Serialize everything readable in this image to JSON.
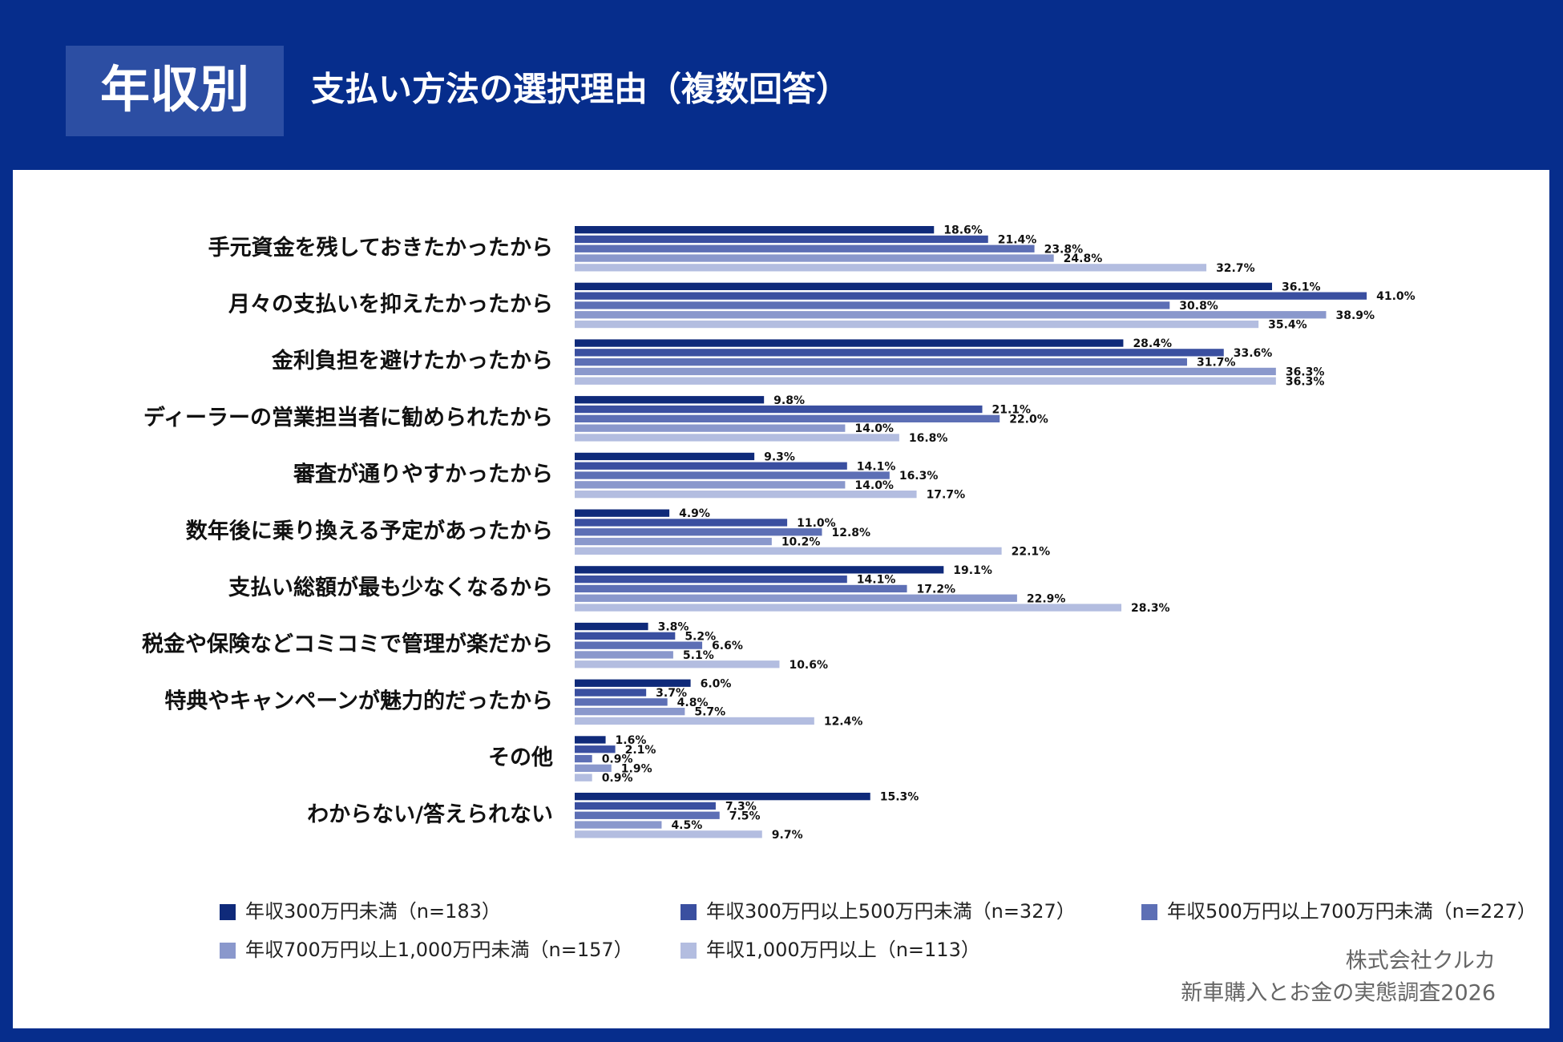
{
  "header": {
    "tag": "年収別",
    "title": "支払い方法の選択理由（複数回答）"
  },
  "chart_data": {
    "type": "bar",
    "categories": [
      "手元資金を残しておきたかったから",
      "月々の支払いを抑えたかったから",
      "金利負担を避けたかったから",
      "ディーラーの営業担当者に勧められたから",
      "審査が通りやすかったから",
      "数年後に乗り換える予定があったから",
      "支払い総額が最も少なくなるから",
      "税金や保険などコミコミで管理が楽だから",
      "特典やキャンペーンが魅力的だったから",
      "その他",
      "わからない/答えられない"
    ],
    "series": [
      {
        "name": "年収300万円未満（n=183）",
        "color": "#0f2a7a",
        "values": [
          18.6,
          36.1,
          28.4,
          9.8,
          9.3,
          4.9,
          19.1,
          3.8,
          6.0,
          1.6,
          15.3
        ],
        "value_labels": [
          "18.6%",
          "36.1%",
          "28.4%",
          "9.8%",
          "9.3%",
          "4.9%",
          "19.1%",
          "3.8%",
          "6.0%",
          "1.6%",
          "15.3%"
        ]
      },
      {
        "name": "年収300万円以上500万円未満（n=327）",
        "color": "#3a4fa0",
        "values": [
          21.4,
          41.0,
          33.6,
          21.1,
          14.1,
          11.0,
          14.1,
          5.2,
          3.7,
          2.1,
          7.3
        ],
        "value_labels": [
          "21.4%",
          "41.0%",
          "33.6%",
          "21.1%",
          "14.1%",
          "11.0%",
          "14.1%",
          "5.2%",
          "3.7%",
          "2.1%",
          "7.3%"
        ]
      },
      {
        "name": "年収500万円以上700万円未満（n=227）",
        "color": "#5d6fb5",
        "values": [
          23.8,
          30.8,
          31.7,
          22.0,
          16.3,
          12.8,
          17.2,
          6.6,
          4.8,
          0.9,
          7.5
        ],
        "value_labels": [
          "23.8%",
          "30.8%",
          "31.7%",
          "22.0%",
          "16.3%",
          "12.8%",
          "17.2%",
          "6.6%",
          "4.8%",
          "0.9%",
          "7.5%"
        ]
      },
      {
        "name": "年収700万円以上1,000万円未満（n=157）",
        "color": "#8a98cc",
        "values": [
          24.8,
          38.9,
          36.3,
          14.0,
          14.0,
          10.2,
          22.9,
          5.1,
          5.7,
          1.9,
          4.5
        ],
        "value_labels": [
          "24.8%",
          "38.9%",
          "36.3%",
          "14.0%",
          "14.0%",
          "10.2%",
          "22.9%",
          "5.1%",
          "5.7%",
          "1.9%",
          "4.5%"
        ]
      },
      {
        "name": "年収1,000万円以上（n=113）",
        "color": "#b3bde0",
        "values": [
          32.7,
          35.4,
          36.3,
          16.8,
          17.7,
          22.1,
          28.3,
          10.6,
          12.4,
          0.9,
          9.7
        ],
        "value_labels": [
          "32.7%",
          "35.4%",
          "36.3%",
          "16.8%",
          "17.7%",
          "22.1%",
          "28.3%",
          "10.6%",
          "12.4%",
          "0.9%",
          "9.7%"
        ]
      }
    ]
  },
  "source": [
    "株式会社クルカ",
    "新車購入とお金の実態調査2026"
  ]
}
